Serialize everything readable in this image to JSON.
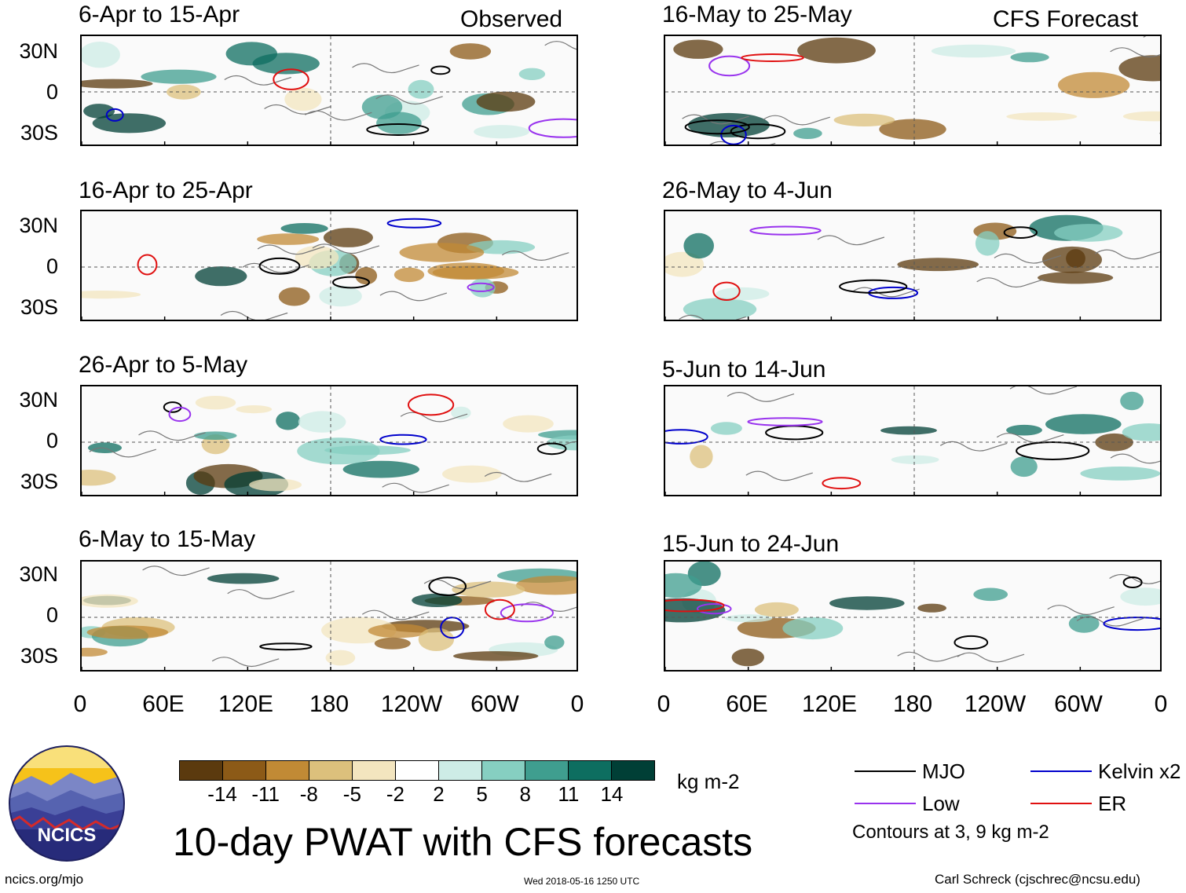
{
  "columns": {
    "left_label": "Observed",
    "right_label": "CFS Forecast"
  },
  "panels": {
    "left": [
      {
        "title": "6-Apr to 15-Apr"
      },
      {
        "title": "16-Apr to 25-Apr"
      },
      {
        "title": "26-Apr to 5-May"
      },
      {
        "title": "6-May to 15-May"
      }
    ],
    "right": [
      {
        "title": "16-May to 25-May"
      },
      {
        "title": "26-May to 4-Jun"
      },
      {
        "title": "5-Jun to 14-Jun"
      },
      {
        "title": "15-Jun to 24-Jun"
      }
    ]
  },
  "lat_labels": [
    "30N",
    "0",
    "30S"
  ],
  "lon_labels": [
    "0",
    "60E",
    "120E",
    "180",
    "120W",
    "60W",
    "0"
  ],
  "colorbar": {
    "colors": [
      "#5b3a0e",
      "#8c5a17",
      "#c18a35",
      "#dcc07c",
      "#f3e5bf",
      "#ffffff",
      "#cdece6",
      "#86cfc1",
      "#3f9e8f",
      "#0d6e60",
      "#003f36"
    ],
    "ticks": [
      "-14",
      "-11",
      "-8",
      "-5",
      "-2",
      "2",
      "5",
      "8",
      "11",
      "14"
    ],
    "units": "kg m-2"
  },
  "title": "10-day PWAT with CFS forecasts",
  "legend": [
    {
      "label": "MJO",
      "color": "#000000"
    },
    {
      "label": "Kelvin x2",
      "color": "#0000cc"
    },
    {
      "label": "Low",
      "color": "#9933ee"
    },
    {
      "label": "ER",
      "color": "#e01010"
    }
  ],
  "contour_note": "Contours at 3, 9 kg m-2",
  "footer": {
    "left": "ncics.org/mjo",
    "center": "Wed 2018-05-16 1250 UTC",
    "right": "Carl Schreck (cjschrec@ncsu.edu)"
  },
  "logo_text": "NCICS"
}
